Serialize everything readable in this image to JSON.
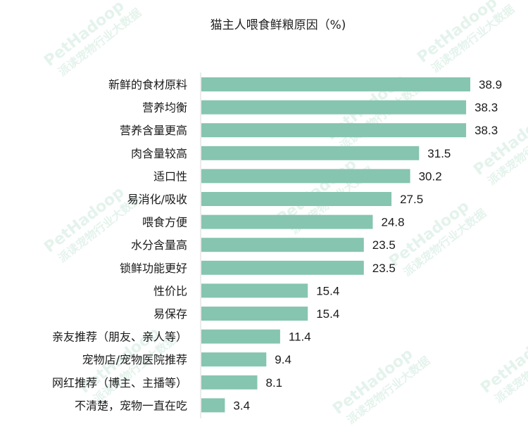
{
  "chart_data": {
    "type": "bar",
    "orientation": "horizontal",
    "title": "猫主人喂食鲜粮原因（%)",
    "categories": [
      "新鲜的食材原料",
      "营养均衡",
      "营养含量更高",
      "肉含量较高",
      "适口性",
      "易消化/吸收",
      "喂食方便",
      "水分含量高",
      "锁鲜功能更好",
      "性价比",
      "易保存",
      "亲友推荐（朋友、亲人等）",
      "宠物店/宠物医院推荐",
      "网红推荐（博主、主播等）",
      "不清楚，宠物一直在吃"
    ],
    "values": [
      38.9,
      38.3,
      38.3,
      31.5,
      30.2,
      27.5,
      24.8,
      23.5,
      23.5,
      15.4,
      15.4,
      11.4,
      9.4,
      8.1,
      3.4
    ],
    "value_labels": [
      "38.9",
      "38.3",
      "38.3",
      "31.5",
      "30.2",
      "27.5",
      "24.8",
      "23.5",
      "23.5",
      "15.4",
      "15.4",
      "11.4",
      "9.4",
      "8.1",
      "3.4"
    ],
    "xlim": [
      0,
      38.9
    ],
    "bar_color": "#86c5b0",
    "axis_color": "#d9d9d9",
    "grid": false,
    "legend": "none"
  },
  "watermark": {
    "brand": "PetHadoop",
    "subtitle": "派读宠物行业大数据",
    "color": "#5fb88c"
  }
}
